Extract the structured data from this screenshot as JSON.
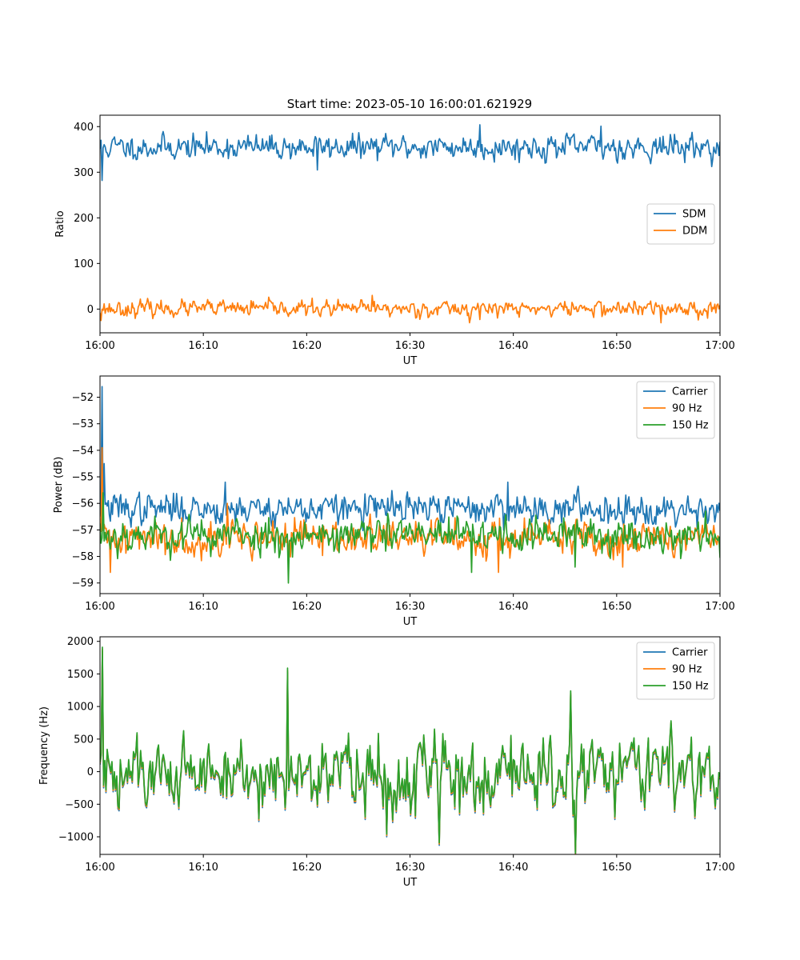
{
  "figure": {
    "title": "Start time: 2023-05-10 16:00:01.621929"
  },
  "colors": {
    "blue": "#1f77b4",
    "orange": "#ff7f0e",
    "green": "#2ca02c"
  },
  "chart_data": [
    {
      "type": "line",
      "title": "Start time: 2023-05-10 16:00:01.621929",
      "xlabel": "UT",
      "ylabel": "Ratio",
      "xlim": [
        "16:00",
        "17:00"
      ],
      "ylim": [
        -52,
        425
      ],
      "xticks": [
        "16:00",
        "16:10",
        "16:20",
        "16:30",
        "16:40",
        "16:50",
        "17:00"
      ],
      "yticks": [
        0,
        100,
        200,
        300,
        400
      ],
      "legend": "center-right",
      "series": [
        {
          "name": "SDM",
          "color": "#1f77b4",
          "mean": 355,
          "noise": 14,
          "seed": 11,
          "spikes": [
            [
              0.25,
              282
            ],
            [
              21.0,
              305
            ],
            [
              36.8,
              404
            ],
            [
              48.5,
              401
            ]
          ]
        },
        {
          "name": "DDM",
          "color": "#ff7f0e",
          "mean": 1,
          "noise": 9,
          "seed": 23,
          "spikes": [
            [
              0.1,
              -25
            ],
            [
              26.3,
              30
            ],
            [
              35.8,
              -30
            ],
            [
              54.3,
              -30
            ]
          ]
        }
      ]
    },
    {
      "type": "line",
      "xlabel": "UT",
      "ylabel": "Power (dB)",
      "xlim": [
        "16:00",
        "17:00"
      ],
      "ylim": [
        -59.4,
        -51.2
      ],
      "xticks": [
        "16:00",
        "16:10",
        "16:20",
        "16:30",
        "16:40",
        "16:50",
        "17:00"
      ],
      "yticks": [
        -59,
        -58,
        -57,
        -56,
        -55,
        -54,
        -53,
        -52
      ],
      "legend": "top-right",
      "series": [
        {
          "name": "Carrier",
          "color": "#1f77b4",
          "mean": -56.2,
          "noise": 0.3,
          "seed": 37,
          "spikes": [
            [
              0.25,
              -51.6
            ],
            [
              0.45,
              -54.5
            ],
            [
              12.1,
              -55.2
            ],
            [
              39.5,
              -55.2
            ]
          ]
        },
        {
          "name": "90 Hz",
          "color": "#ff7f0e",
          "mean": -57.3,
          "noise": 0.35,
          "seed": 41,
          "spikes": [
            [
              0.25,
              -53.9
            ],
            [
              1.0,
              -58.6
            ],
            [
              12.3,
              -56.0
            ],
            [
              38.6,
              -58.6
            ],
            [
              50.6,
              -58.4
            ]
          ]
        },
        {
          "name": "150 Hz",
          "color": "#2ca02c",
          "mean": -57.2,
          "noise": 0.35,
          "seed": 53,
          "spikes": [
            [
              0.3,
              -55.6
            ],
            [
              18.2,
              -59.0
            ],
            [
              36.0,
              -58.6
            ],
            [
              46.0,
              -58.4
            ]
          ]
        }
      ]
    },
    {
      "type": "line",
      "xlabel": "UT",
      "ylabel": "Frequency (Hz)",
      "xlim": [
        "16:00",
        "17:00"
      ],
      "ylim": [
        -1270,
        2070
      ],
      "xticks": [
        "16:00",
        "16:10",
        "16:20",
        "16:30",
        "16:40",
        "16:50",
        "17:00"
      ],
      "yticks": [
        -1000,
        -500,
        0,
        500,
        1000,
        1500,
        2000
      ],
      "legend": "top-right",
      "series": [
        {
          "name": "Carrier",
          "color": "#1f77b4",
          "mean": -20,
          "noise": 300,
          "seed": 61,
          "offset": -40,
          "spikes": [
            [
              0.25,
              1850
            ],
            [
              18.2,
              1520
            ],
            [
              27.8,
              -1000
            ],
            [
              32.8,
              -1130
            ],
            [
              45.5,
              1180
            ]
          ]
        },
        {
          "name": "90 Hz",
          "color": "#ff7f0e",
          "mean": -20,
          "noise": 300,
          "seed": 61,
          "offset": -20,
          "spikes": [
            [
              0.25,
              1880
            ],
            [
              18.2,
              1550
            ],
            [
              27.8,
              -980
            ],
            [
              32.8,
              -1110
            ],
            [
              45.5,
              1210
            ]
          ]
        },
        {
          "name": "150 Hz",
          "color": "#2ca02c",
          "mean": -20,
          "noise": 300,
          "seed": 61,
          "offset": 0,
          "spikes": [
            [
              0.25,
              1910
            ],
            [
              18.2,
              1590
            ],
            [
              27.8,
              -960
            ],
            [
              32.8,
              -1090
            ],
            [
              45.5,
              1240
            ]
          ]
        }
      ]
    }
  ]
}
